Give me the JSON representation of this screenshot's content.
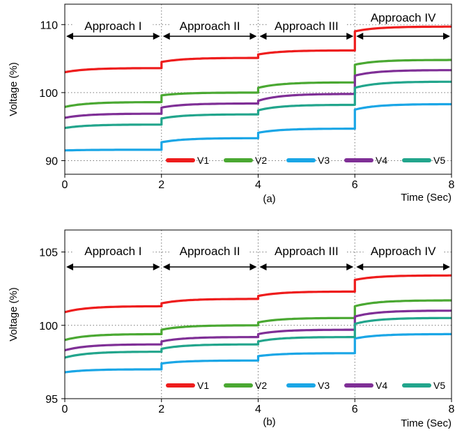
{
  "chart_data": [
    {
      "type": "line",
      "caption": "(a)",
      "xlabel": "Time (Sec)",
      "ylabel": "Voltage (%)",
      "xlim": [
        0,
        8
      ],
      "ylim": [
        88,
        113
      ],
      "xticks": [
        "0",
        "2",
        "4",
        "6",
        "8"
      ],
      "xtick_values": [
        0,
        2,
        4,
        6,
        8
      ],
      "yticks": [
        "90",
        "100",
        "110"
      ],
      "ytick_values": [
        90,
        100,
        110
      ],
      "grid": "dotted",
      "legend": "bottom-right",
      "regions": [
        {
          "label": "Approach I",
          "from": 0,
          "to": 2
        },
        {
          "label": "Approach II",
          "from": 2,
          "to": 4
        },
        {
          "label": "Approach III",
          "from": 4,
          "to": 6
        },
        {
          "label": "Approach IV",
          "from": 6,
          "to": 8
        }
      ],
      "series": [
        {
          "name": "V1",
          "color": "#ee1c1c",
          "steps": [
            [
              103.0,
              103.6
            ],
            [
              104.5,
              105.1
            ],
            [
              105.6,
              106.2
            ],
            [
              109.0,
              109.7
            ]
          ]
        },
        {
          "name": "V2",
          "color": "#4aa832",
          "steps": [
            [
              97.9,
              98.6
            ],
            [
              99.6,
              100.0
            ],
            [
              100.7,
              101.5
            ],
            [
              104.1,
              104.8
            ]
          ]
        },
        {
          "name": "V3",
          "color": "#1aa6e6",
          "steps": [
            [
              91.5,
              91.6
            ],
            [
              92.7,
              93.3
            ],
            [
              94.1,
              94.7
            ],
            [
              97.5,
              98.3
            ]
          ]
        },
        {
          "name": "V4",
          "color": "#7f2f96",
          "steps": [
            [
              96.3,
              96.9
            ],
            [
              97.8,
              98.4
            ],
            [
              98.8,
              99.8
            ],
            [
              102.5,
              103.3
            ]
          ]
        },
        {
          "name": "V5",
          "color": "#22a58c",
          "steps": [
            [
              94.8,
              95.3
            ],
            [
              96.2,
              96.8
            ],
            [
              97.4,
              98.2
            ],
            [
              100.7,
              101.6
            ]
          ]
        }
      ]
    },
    {
      "type": "line",
      "caption": "(b)",
      "xlabel": "Time (Sec)",
      "ylabel": "Voltage (%)",
      "xlim": [
        0,
        8
      ],
      "ylim": [
        95,
        106.5
      ],
      "xticks": [
        "0",
        "2",
        "4",
        "6",
        "8"
      ],
      "xtick_values": [
        0,
        2,
        4,
        6,
        8
      ],
      "yticks": [
        "95",
        "100",
        "105"
      ],
      "ytick_values": [
        95,
        100,
        105
      ],
      "grid": "dotted",
      "legend": "bottom-right",
      "regions": [
        {
          "label": "Approach I",
          "from": 0,
          "to": 2
        },
        {
          "label": "Approach II",
          "from": 2,
          "to": 4
        },
        {
          "label": "Approach III",
          "from": 4,
          "to": 6
        },
        {
          "label": "Approach IV",
          "from": 6,
          "to": 8
        }
      ],
      "series": [
        {
          "name": "V1",
          "color": "#ee1c1c",
          "steps": [
            [
              100.9,
              101.3
            ],
            [
              101.5,
              101.8
            ],
            [
              102.0,
              102.3
            ],
            [
              103.1,
              103.4
            ]
          ]
        },
        {
          "name": "V2",
          "color": "#4aa832",
          "steps": [
            [
              99.0,
              99.4
            ],
            [
              99.7,
              100.0
            ],
            [
              100.2,
              100.5
            ],
            [
              101.3,
              101.7
            ]
          ]
        },
        {
          "name": "V3",
          "color": "#1aa6e6",
          "steps": [
            [
              96.8,
              97.0
            ],
            [
              97.4,
              97.6
            ],
            [
              97.9,
              98.1
            ],
            [
              99.1,
              99.4
            ]
          ]
        },
        {
          "name": "V4",
          "color": "#7f2f96",
          "steps": [
            [
              98.3,
              98.7
            ],
            [
              98.9,
              99.2
            ],
            [
              99.4,
              99.7
            ],
            [
              100.6,
              101.0
            ]
          ]
        },
        {
          "name": "V5",
          "color": "#22a58c",
          "steps": [
            [
              97.8,
              98.2
            ],
            [
              98.4,
              98.7
            ],
            [
              98.9,
              99.2
            ],
            [
              100.1,
              100.5
            ]
          ]
        }
      ]
    }
  ]
}
